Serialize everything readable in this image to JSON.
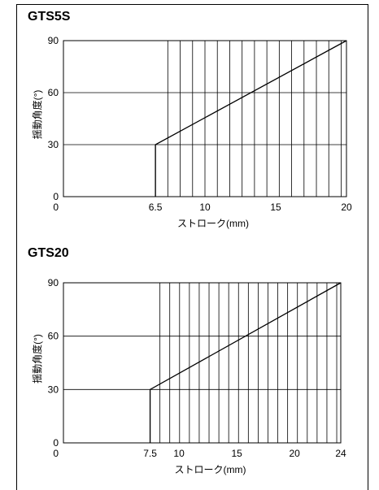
{
  "chart_data": [
    {
      "type": "line",
      "title": "GTS5S",
      "xlabel": "ストローク(mm)",
      "ylabel": "揺動角度(°)",
      "xlim": [
        0,
        20
      ],
      "ylim": [
        0,
        90
      ],
      "x_ticks": [
        "0",
        "6.5",
        "10",
        "15",
        "20"
      ],
      "y_ticks": [
        "0",
        "30",
        "60",
        "90"
      ],
      "series": [
        {
          "x": [
            6.5,
            6.5,
            20
          ],
          "y": [
            0,
            30,
            90
          ]
        }
      ],
      "hatch_from": 6.5,
      "hatch_step": 0.875,
      "grid": true
    },
    {
      "type": "line",
      "title": "GTS20",
      "xlabel": "ストローク(mm)",
      "ylabel": "揺動角度(°)",
      "xlim": [
        0,
        24
      ],
      "ylim": [
        0,
        90
      ],
      "x_ticks": [
        "0",
        "7.5",
        "10",
        "15",
        "20",
        "24"
      ],
      "y_ticks": [
        "0",
        "30",
        "60",
        "90"
      ],
      "series": [
        {
          "x": [
            7.5,
            7.5,
            24
          ],
          "y": [
            0,
            30,
            90
          ]
        }
      ],
      "hatch_from": 7.5,
      "hatch_step": 0.85,
      "grid": true
    }
  ]
}
